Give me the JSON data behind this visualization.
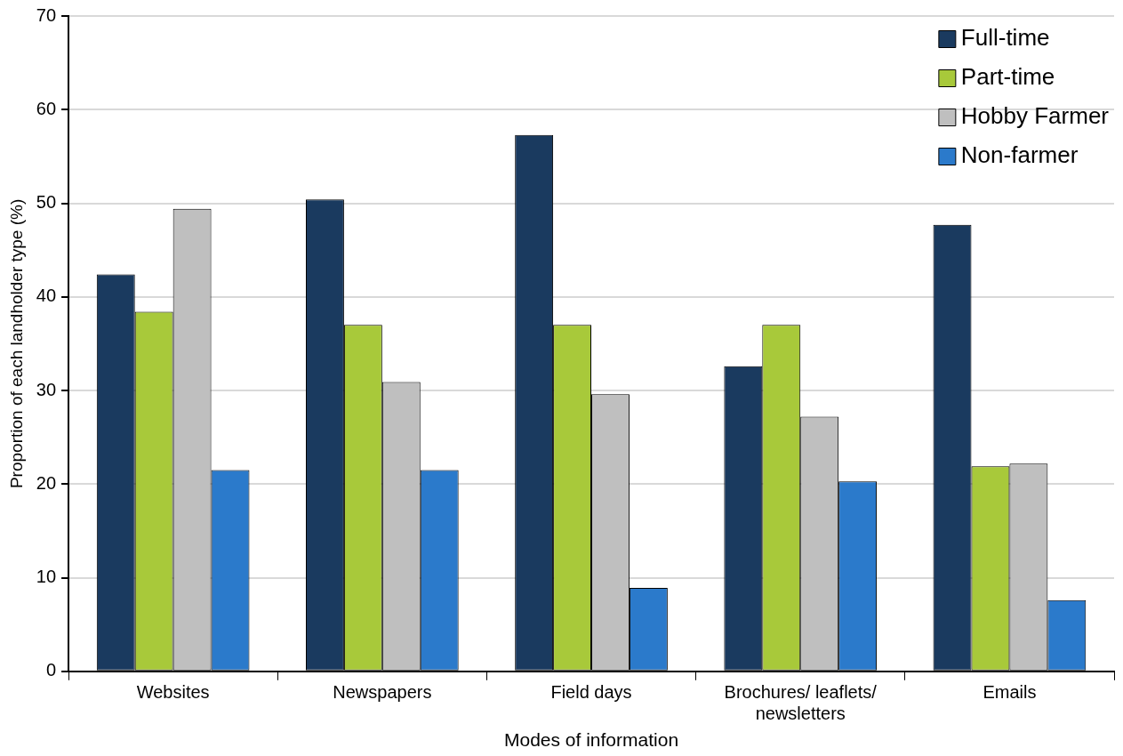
{
  "chart_data": {
    "type": "bar",
    "xlabel": "Modes of information",
    "ylabel": "Proportion of each landholder type (%)",
    "categories": [
      "Websites",
      "Newspapers",
      "Field days",
      "Brochures/ leaflets/ newsletters",
      "Emails"
    ],
    "series": [
      {
        "name": "Full-time",
        "color": "#1a3a5f",
        "values": [
          42.4,
          50.4,
          57.3,
          32.6,
          47.7
        ]
      },
      {
        "name": "Part-time",
        "color": "#a8c93a",
        "values": [
          38.4,
          37.0,
          37.0,
          37.0,
          21.9
        ]
      },
      {
        "name": "Hobby Farmer",
        "color": "#bfbfbf",
        "values": [
          49.4,
          30.9,
          29.6,
          27.2,
          22.2
        ]
      },
      {
        "name": "Non-farmer",
        "color": "#2b7acb",
        "values": [
          21.5,
          21.5,
          8.9,
          20.3,
          7.6
        ]
      }
    ],
    "ylim": [
      0,
      70
    ],
    "yticks": [
      0,
      10,
      20,
      30,
      40,
      50,
      60,
      70
    ],
    "grid": "y",
    "legend": "top right"
  }
}
